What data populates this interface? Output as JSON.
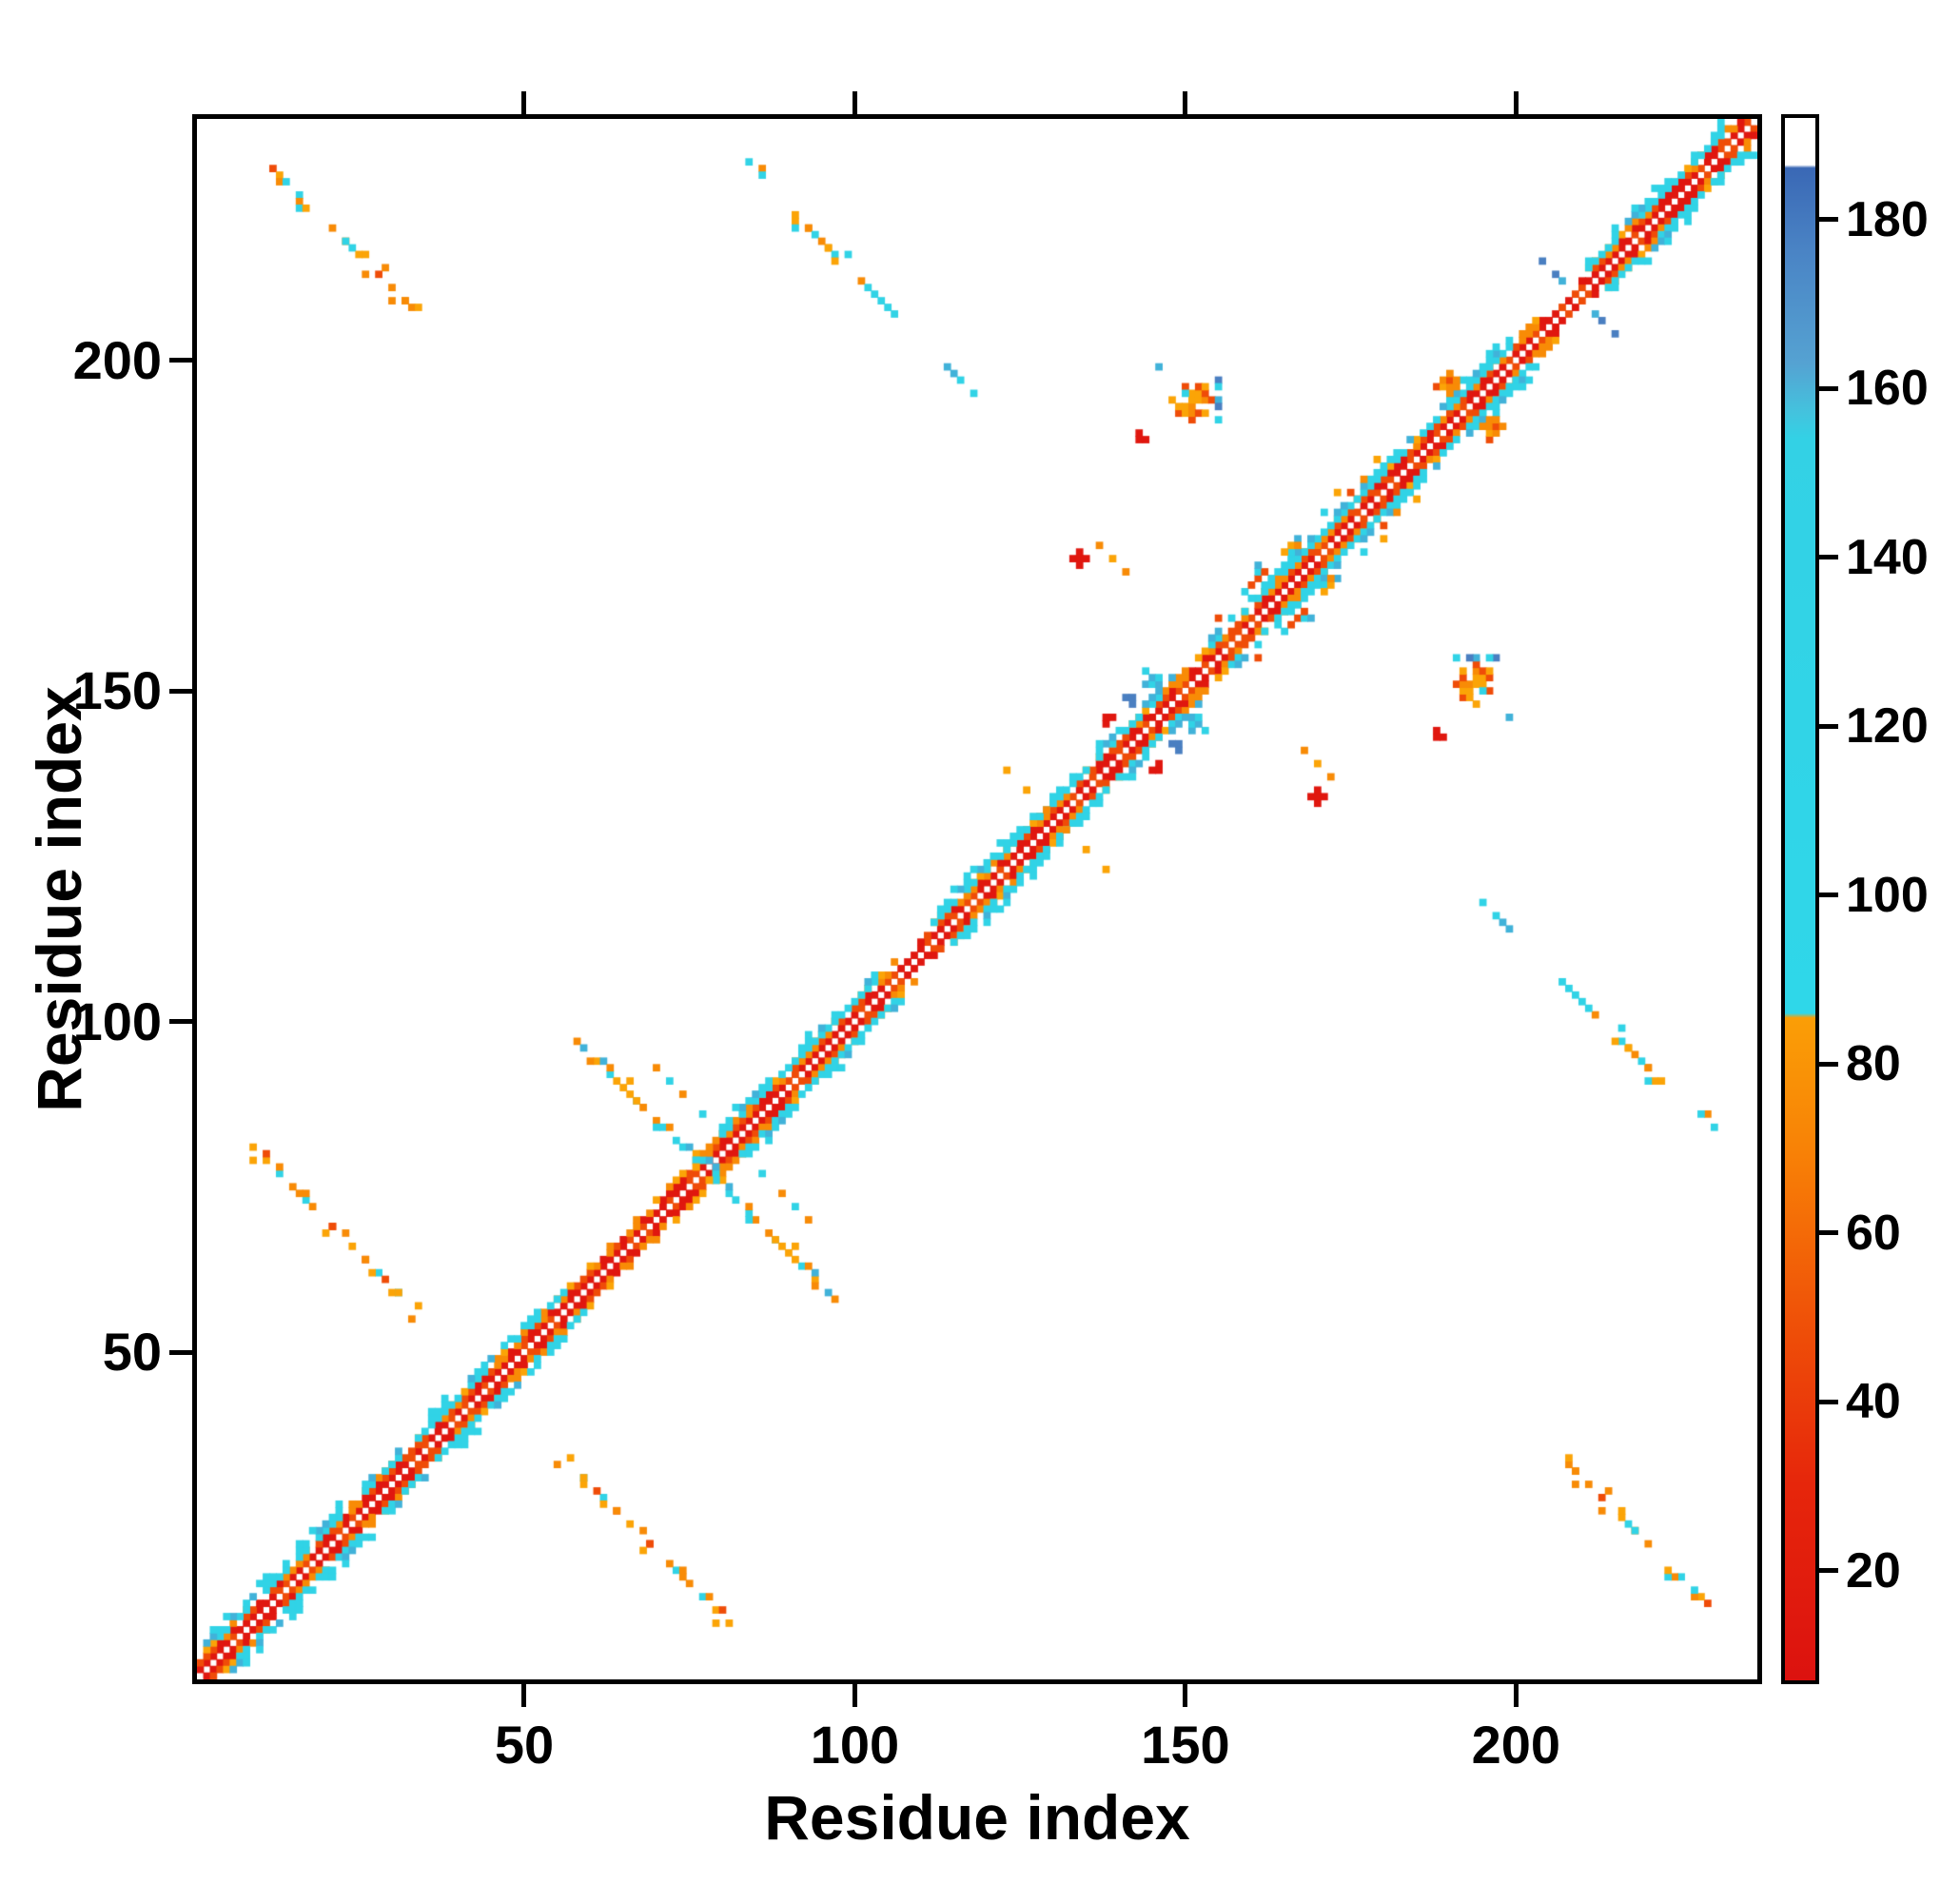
{
  "figure": {
    "background": "#ffffff"
  },
  "chart_data": {
    "type": "heatmap",
    "subtype": "protein-residue-contact-map",
    "title": "",
    "xlabel": "Residue index",
    "ylabel": "Residue index",
    "n_residues": 236,
    "x_range": [
      1,
      236
    ],
    "y_range": [
      1,
      236
    ],
    "x_ticks": [
      50,
      100,
      150,
      200
    ],
    "y_ticks": [
      50,
      100,
      150,
      200
    ],
    "grid": false,
    "legend": "none",
    "background": "#ffffff",
    "colorbar": {
      "position": "right",
      "value_range": [
        7,
        192
      ],
      "ticks": [
        20,
        40,
        60,
        80,
        100,
        120,
        140,
        160,
        180
      ],
      "gradient_stops": [
        {
          "pct": 0.0,
          "color": "#ffffff"
        },
        {
          "pct": 3.0,
          "color": "#ffffff"
        },
        {
          "pct": 3.2,
          "color": "#3a68b5"
        },
        {
          "pct": 8.6,
          "color": "#4a84c5"
        },
        {
          "pct": 15.7,
          "color": "#55a2d2"
        },
        {
          "pct": 18.9,
          "color": "#43c3de"
        },
        {
          "pct": 20.5,
          "color": "#33d1e5"
        },
        {
          "pct": 56.5,
          "color": "#2fd7e9"
        },
        {
          "pct": 57.3,
          "color": "#2fd7e9"
        },
        {
          "pct": 57.6,
          "color": "#fa9e06"
        },
        {
          "pct": 66.0,
          "color": "#f88206"
        },
        {
          "pct": 77.0,
          "color": "#ef5108"
        },
        {
          "pct": 87.5,
          "color": "#e6260b"
        },
        {
          "pct": 100.0,
          "color": "#dc120f"
        }
      ]
    },
    "palette": {
      "red": "#e0170f",
      "red_orange": "#ef4c08",
      "orange": "#f88b06",
      "amber": "#fba407",
      "cyan": "#31d3e6",
      "sky": "#41b2d9",
      "blue": "#4a7fc1",
      "white": "#ffffff"
    },
    "diagonal_band": {
      "description": "Symmetric near-diagonal contact band: white main diagonal flanked by red (|i-j|=1), orange-red (|i-j|=2-3), cyan (|i-j|=3-5 in helical segments)",
      "offsets": [
        {
          "offset": 1,
          "density": 1.0,
          "colors": [
            "red",
            "red",
            "red",
            "red_orange"
          ]
        },
        {
          "offset": 2,
          "density": 0.92,
          "colors": [
            "red_orange",
            "orange",
            "red"
          ]
        },
        {
          "offset": 3,
          "density": 0.45,
          "colors": [
            "orange",
            "amber"
          ]
        }
      ],
      "helix_offsets": [
        {
          "offset": 3,
          "density": 0.8,
          "colors": [
            "cyan"
          ]
        },
        {
          "offset": 4,
          "density": 0.6,
          "colors": [
            "cyan",
            "cyan",
            "sky"
          ]
        },
        {
          "offset": 5,
          "density": 0.14,
          "colors": [
            "cyan"
          ]
        }
      ],
      "helix_segments": [
        [
          2,
          22
        ],
        [
          26,
          45
        ],
        [
          47,
          56
        ],
        [
          80,
          103
        ],
        [
          112,
          148
        ],
        [
          154,
          199
        ],
        [
          211,
          231
        ]
      ],
      "gaps": [
        [
          107,
          109
        ],
        [
          205,
          208
        ]
      ]
    },
    "contact_clusters": [
      {
        "name": "antiparallel-sheet-A",
        "type": "streak",
        "x0": 9,
        "y0": 81,
        "dx": 1,
        "dy": -1,
        "len": 26,
        "thickness": 2,
        "density": 0.5,
        "colors": [
          "orange",
          "amber",
          "orange",
          "cyan",
          "red_orange"
        ]
      },
      {
        "name": "antiparallel-sheet-B",
        "type": "streak",
        "x0": 11,
        "y0": 230,
        "dx": 1,
        "dy": -1,
        "len": 23,
        "thickness": 2,
        "density": 0.45,
        "colors": [
          "orange",
          "amber",
          "orange",
          "red_orange",
          "cyan"
        ]
      },
      {
        "name": "antiparallel-sheet-C",
        "type": "streak",
        "x0": 58,
        "y0": 97,
        "dx": 1,
        "dy": -1,
        "len": 22,
        "thickness": 2,
        "density": 0.55,
        "colors": [
          "cyan",
          "orange",
          "amber",
          "cyan",
          "sky"
        ]
      },
      {
        "name": "antiparallel-sheet-C2",
        "type": "streak",
        "x0": 68,
        "y0": 95,
        "dx": 1,
        "dy": -1,
        "len": 11,
        "thickness": 1,
        "density": 0.45,
        "colors": [
          "cyan",
          "orange"
        ]
      },
      {
        "name": "antiparallel-sheet-D",
        "type": "streak",
        "x0": 83,
        "y0": 230,
        "dx": 1,
        "dy": -1,
        "len": 24,
        "thickness": 2,
        "density": 0.5,
        "colors": [
          "cyan",
          "orange",
          "amber",
          "cyan"
        ]
      },
      {
        "name": "cyan-pair-E",
        "type": "streak",
        "x0": 113,
        "y0": 200,
        "dx": 1,
        "dy": -1,
        "len": 7,
        "thickness": 1,
        "density": 0.55,
        "colors": [
          "cyan",
          "sky"
        ]
      },
      {
        "name": "hook-core",
        "type": "blob",
        "x": 151,
        "y": 194,
        "r": 3,
        "density": 0.8,
        "colors": [
          "orange",
          "amber",
          "red_orange"
        ]
      },
      {
        "name": "hook-arc-1",
        "type": "streak",
        "x0": 145,
        "y0": 200,
        "dx": 1,
        "dy": -1,
        "len": 6,
        "thickness": 1,
        "density": 0.65,
        "colors": [
          "cyan",
          "sky"
        ]
      },
      {
        "name": "hook-arc-2",
        "type": "streak",
        "x0": 155,
        "y0": 197,
        "dx": 0,
        "dy": -1,
        "len": 7,
        "thickness": 1,
        "density": 0.6,
        "colors": [
          "cyan",
          "sky",
          "blue"
        ]
      },
      {
        "name": "red-dot-1",
        "type": "blob",
        "x": 143,
        "y": 188,
        "r": 1,
        "density": 0.9,
        "colors": [
          "red"
        ]
      },
      {
        "name": "loop-contacts-F",
        "type": "streak",
        "x0": 136,
        "y0": 173,
        "dx": 1,
        "dy": -1,
        "len": 6,
        "thickness": 1,
        "density": 0.55,
        "colors": [
          "orange",
          "amber"
        ]
      },
      {
        "name": "red-dot-2",
        "type": "blob",
        "x": 134,
        "y": 170,
        "r": 1,
        "density": 0.9,
        "colors": [
          "red"
        ]
      },
      {
        "name": "loop-contacts-G",
        "type": "streak",
        "x0": 123,
        "y0": 138,
        "dx": 1,
        "dy": -1,
        "len": 7,
        "thickness": 1,
        "density": 0.55,
        "colors": [
          "orange",
          "amber"
        ]
      },
      {
        "name": "near-diagonal-smear",
        "type": "streak",
        "x0": 153,
        "y0": 159,
        "dx": 1,
        "dy": 1,
        "len": 27,
        "thickness": 2,
        "density": 0.28,
        "colors": [
          "cyan",
          "orange",
          "red_orange",
          "sky",
          "amber"
        ]
      },
      {
        "name": "cyan-blob",
        "type": "blob",
        "x": 145,
        "y": 152,
        "r": 2,
        "density": 0.7,
        "colors": [
          "cyan",
          "sky"
        ]
      },
      {
        "name": "blue-dot",
        "type": "blob",
        "x": 142,
        "y": 149,
        "r": 1,
        "density": 0.9,
        "colors": [
          "blue"
        ]
      },
      {
        "name": "red-dot-3",
        "type": "blob",
        "x": 138,
        "y": 146,
        "r": 1,
        "density": 0.9,
        "colors": [
          "red"
        ]
      },
      {
        "name": "topright-cyan-bits",
        "type": "streak",
        "x0": 203,
        "y0": 216,
        "dx": 1,
        "dy": -1,
        "len": 6,
        "thickness": 1,
        "density": 0.5,
        "colors": [
          "cyan",
          "sky",
          "blue"
        ]
      },
      {
        "name": "topright-orange-blob",
        "type": "blob",
        "x": 190,
        "y": 196,
        "r": 2,
        "density": 0.6,
        "colors": [
          "orange",
          "amber",
          "red_orange"
        ]
      }
    ],
    "render": {
      "seed": 11,
      "cell_overlap": 0.8,
      "symmetric": true
    }
  }
}
